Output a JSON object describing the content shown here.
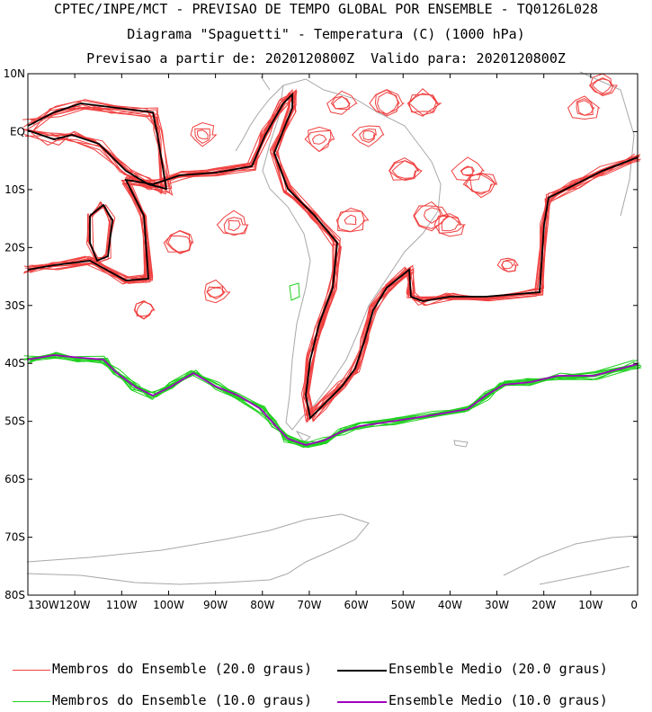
{
  "title": {
    "line1": "CPTEC/INPE/MCT - PREVISAO DE TEMPO GLOBAL POR ENSEMBLE - TQ0126L028",
    "line2": "Diagrama \"Spaguetti\" - Temperatura (C) (1000 hPa)",
    "line3": "Previsao a partir de: 2020120800Z  Valido para: 2020120800Z"
  },
  "axes": {
    "lat_ticks": [
      "10N",
      "EQ",
      "10S",
      "20S",
      "30S",
      "40S",
      "50S",
      "60S",
      "70S",
      "80S"
    ],
    "lon_ticks": [
      "130W",
      "120W",
      "110W",
      "100W",
      "90W",
      "80W",
      "70W",
      "60W",
      "50W",
      "40W",
      "30W",
      "20W",
      "10W",
      "0"
    ],
    "lat_range": [
      -80,
      10
    ],
    "lon_range": [
      -130,
      0
    ]
  },
  "legend": {
    "members_20": "Membros do Ensemble (20.0 graus)",
    "mean_20": "Ensemble Medio (20.0 graus)",
    "members_10": "Membros do Ensemble (10.0 graus)",
    "mean_10": "Ensemble Medio (10.0 graus)"
  },
  "colors": {
    "members_20": "#f04040",
    "mean_20": "#000000",
    "members_10": "#20d020",
    "mean_10": "#a000c0",
    "coast": "#a8a8a8"
  }
}
